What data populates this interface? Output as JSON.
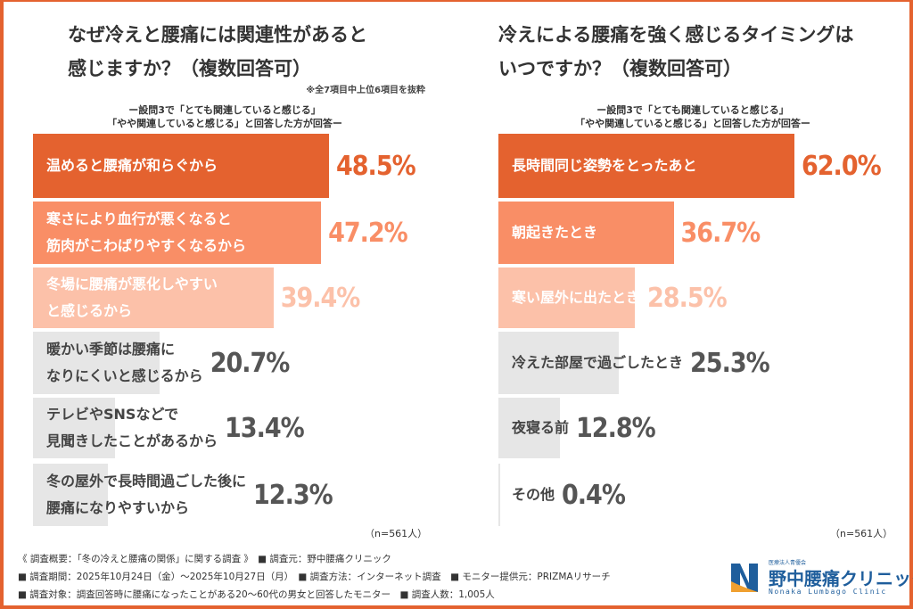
{
  "colors": {
    "dark": "#e4622f",
    "medium": "#f98e66",
    "light": "#fcc1a9",
    "gray": "#e6e6e6"
  },
  "chart_data": [
    {
      "type": "bar",
      "orientation": "horizontal",
      "title": "なぜ冷えと腰痛には関連性があると\n感じますか？（複数回答可）",
      "note": "※全7項目中上位6項目を抜粋",
      "subtitle": "ー設問3で「とても関連していると感じる」\n「やや関連していると感じる」と回答した方が回答ー",
      "categories": [
        "温めると腰痛が和らぐから",
        "寒さにより血行が悪くなると\n筋肉がこわばりやすくなるから",
        "冬場に腰痛が悪化しやすい\nと感じるから",
        "暖かい季節は腰痛に\nなりにくいと感じるから",
        "テレビやSNSなどで\n見聞きしたことがあるから",
        "冬の屋外で長時間過ごした後に\n腰痛になりやすいから"
      ],
      "values": [
        48.5,
        47.2,
        39.4,
        20.7,
        13.4,
        12.3
      ],
      "value_labels": [
        "48.5%",
        "47.2%",
        "39.4%",
        "20.7%",
        "13.4%",
        "12.3%"
      ],
      "styles": [
        "dark",
        "medium",
        "light",
        "gray",
        "gray",
        "gray"
      ],
      "sample": "（n=561人）"
    },
    {
      "type": "bar",
      "orientation": "horizontal",
      "title": "冷えによる腰痛を強く感じるタイミングは\nいつですか？（複数回答可）",
      "subtitle": "ー設問3で「とても関連していると感じる」\n「やや関連していると感じる」と回答した方が回答ー",
      "categories": [
        "長時間同じ姿勢をとったあと",
        "朝起きたとき",
        "寒い屋外に出たとき",
        "冷えた部屋で過ごしたとき",
        "夜寝る前",
        "その他"
      ],
      "values": [
        62.0,
        36.7,
        28.5,
        25.3,
        12.8,
        0.4
      ],
      "value_labels": [
        "62.0%",
        "36.7%",
        "28.5%",
        "25.3%",
        "12.8%",
        "0.4%"
      ],
      "styles": [
        "dark",
        "medium",
        "light",
        "gray",
        "gray",
        "gray"
      ],
      "sample": "（n=561人）"
    }
  ],
  "footer": {
    "lines": [
      "《 調査概要：「冬の冷えと腰痛の関係」に関する調査 》　■ 調査元：野中腰痛クリニック",
      "■ 調査期間：2025年10月24日（金）～2025年10月27日（月）　■ 調査方法：インターネット調査　■ モニター提供元：PRIZMAリサーチ",
      "■ 調査対象：調査回答時に腰痛になったことがある20～60代の男女と回答したモニター　■ 調査人数：1,005人"
    ]
  },
  "logo": {
    "org": "医療法人青優会",
    "name": "野中腰痛クリニック",
    "en": "Nonaka Lumbago Clinic"
  }
}
